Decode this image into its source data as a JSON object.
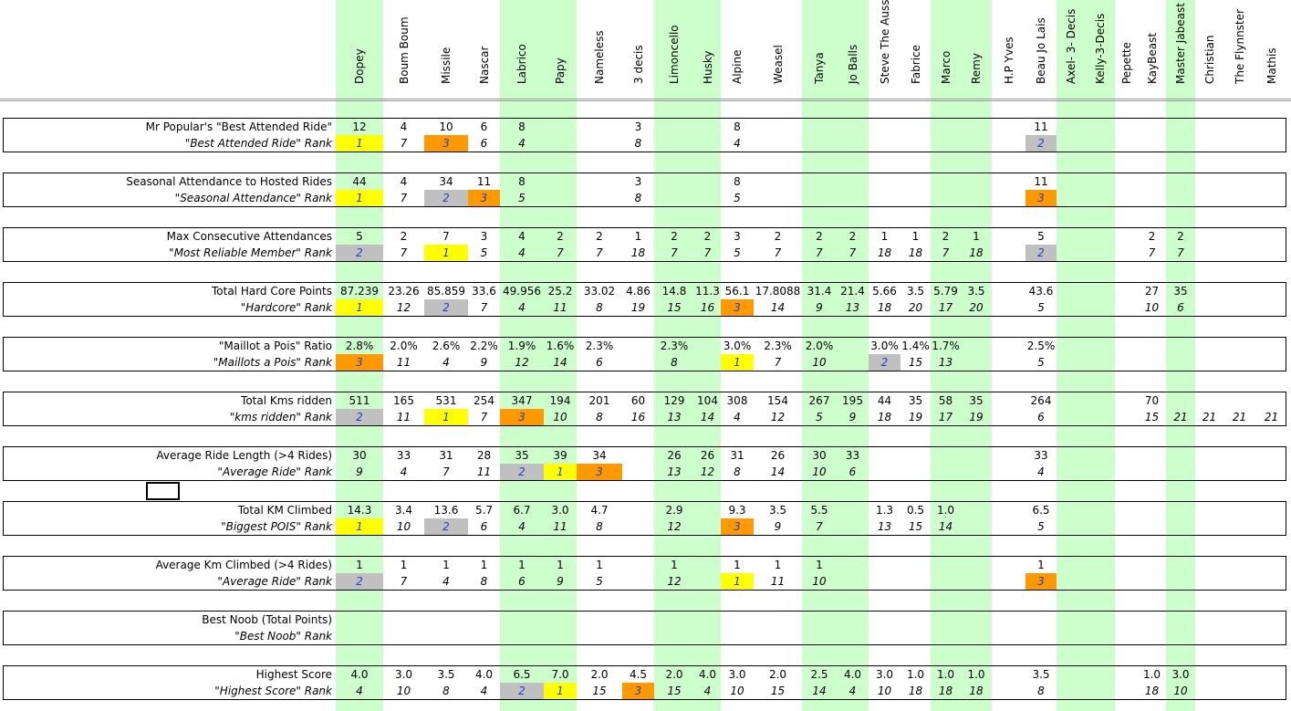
{
  "columns": [
    "Dopey",
    "Boum Boum",
    "Missile",
    "Nascar",
    "Labrico",
    "Papy",
    "Nameless",
    "3 decis",
    "Limoncello",
    "Husky",
    "Alpine",
    "Weasel",
    "Tanya",
    "Jo Balls",
    "Steve The Aussie",
    "Fabrice",
    "Marco",
    "Remy",
    "H.P Yves",
    "Beau Jo Lais",
    "Axel- 3- Decis",
    "Kelly-3-Decis",
    "Pepette",
    "KayBeast",
    "Master Jabeast",
    "Christian",
    "The Flynnster",
    "Mathis"
  ],
  "highlight_colors": {
    "yellow": "#ffff00",
    "orange": "#ff9900",
    "gray": "#c0c0c0",
    "green": "#ccffcc"
  },
  "sections": [
    {
      "label": "Mr Popular's \"Best Attended Ride\"",
      "rank_label": "\"Best Attended Ride\" Rank",
      "values": [
        "12",
        "4",
        "10",
        "6",
        "8",
        "",
        "",
        "3",
        "",
        "",
        "8",
        "",
        "",
        "",
        "",
        "",
        "",
        "",
        "",
        "11",
        "",
        "",
        "",
        "",
        "",
        "",
        "",
        ""
      ],
      "ranks": [
        "1",
        "7",
        "3",
        "6",
        "4",
        "",
        "",
        "8",
        "",
        "",
        "4",
        "",
        "",
        "",
        "",
        "",
        "",
        "",
        "",
        "2",
        "",
        "",
        "",
        "",
        "",
        "",
        "",
        ""
      ]
    },
    {
      "label": "Seasonal Attendance to Hosted Rides",
      "rank_label": "\"Seasonal Attendance\" Rank",
      "values": [
        "44",
        "4",
        "34",
        "11",
        "8",
        "",
        "",
        "3",
        "",
        "",
        "8",
        "",
        "",
        "",
        "",
        "",
        "",
        "",
        "",
        "11",
        "",
        "",
        "",
        "",
        "",
        "",
        "",
        ""
      ],
      "ranks": [
        "1",
        "7",
        "2",
        "3",
        "5",
        "",
        "",
        "8",
        "",
        "",
        "5",
        "",
        "",
        "",
        "",
        "",
        "",
        "",
        "",
        "3",
        "",
        "",
        "",
        "",
        "",
        "",
        "",
        ""
      ]
    },
    {
      "label": "Max Consecutive Attendances",
      "rank_label": "\"Most Reliable Member\" Rank",
      "values": [
        "5",
        "2",
        "7",
        "3",
        "4",
        "2",
        "2",
        "1",
        "2",
        "2",
        "3",
        "2",
        "2",
        "2",
        "1",
        "1",
        "2",
        "1",
        "",
        "5",
        "",
        "",
        "",
        "2",
        "2",
        "",
        "",
        ""
      ],
      "ranks": [
        "2",
        "7",
        "1",
        "5",
        "4",
        "7",
        "7",
        "18",
        "7",
        "7",
        "5",
        "7",
        "7",
        "7",
        "18",
        "18",
        "7",
        "18",
        "",
        "2",
        "",
        "",
        "",
        "7",
        "7",
        "",
        "",
        ""
      ]
    },
    {
      "label": "Total Hard Core Points",
      "rank_label": "\"Hardcore\" Rank",
      "values": [
        "87.239",
        "23.26",
        "85.859",
        "33.6",
        "49.956",
        "25.2",
        "33.02",
        "4.86",
        "14.8",
        "11.3",
        "56.1",
        "17.8088",
        "31.4",
        "21.4",
        "5.66",
        "3.5",
        "5.79",
        "3.5",
        "",
        "43.6",
        "",
        "",
        "",
        "27",
        "35",
        "",
        "",
        ""
      ],
      "ranks": [
        "1",
        "12",
        "2",
        "7",
        "4",
        "11",
        "8",
        "19",
        "15",
        "16",
        "3",
        "14",
        "9",
        "13",
        "18",
        "20",
        "17",
        "20",
        "",
        "5",
        "",
        "",
        "",
        "10",
        "6",
        "",
        "",
        ""
      ]
    },
    {
      "label": "\"Maillot a Pois\" Ratio",
      "rank_label": "\"Maillots a Pois\" Rank",
      "values": [
        "2.8%",
        "2.0%",
        "2.6%",
        "2.2%",
        "1.9%",
        "1.6%",
        "2.3%",
        "",
        "2.3%",
        "",
        "3.0%",
        "2.3%",
        "2.0%",
        "",
        "3.0%",
        "1.4%",
        "1.7%",
        "",
        "",
        "2.5%",
        "",
        "",
        "",
        "",
        "",
        "",
        "",
        ""
      ],
      "ranks": [
        "3",
        "11",
        "4",
        "9",
        "12",
        "14",
        "6",
        "",
        "8",
        "",
        "1",
        "7",
        "10",
        "",
        "2",
        "15",
        "13",
        "",
        "",
        "5",
        "",
        "",
        "",
        "",
        "",
        "",
        "",
        ""
      ]
    },
    {
      "label": "Total Kms ridden",
      "rank_label": "\"kms ridden\" Rank",
      "values": [
        "511",
        "165",
        "531",
        "254",
        "347",
        "194",
        "201",
        "60",
        "129",
        "104",
        "308",
        "154",
        "267",
        "195",
        "44",
        "35",
        "58",
        "35",
        "",
        "264",
        "",
        "",
        "",
        "70",
        "",
        "",
        "",
        ""
      ],
      "ranks": [
        "2",
        "11",
        "1",
        "7",
        "3",
        "10",
        "8",
        "16",
        "13",
        "14",
        "4",
        "12",
        "5",
        "9",
        "18",
        "19",
        "17",
        "19",
        "",
        "6",
        "",
        "",
        "",
        "15",
        "21",
        "21",
        "21",
        "21"
      ]
    },
    {
      "label": "Average Ride Length (>4 Rides)",
      "rank_label": "\"Average Ride\" Rank",
      "values": [
        "30",
        "33",
        "31",
        "28",
        "35",
        "39",
        "34",
        "",
        "26",
        "26",
        "31",
        "26",
        "30",
        "33",
        "",
        "",
        "",
        "",
        "",
        "33",
        "",
        "",
        "",
        "",
        "",
        "",
        "",
        ""
      ],
      "ranks": [
        "9",
        "4",
        "7",
        "11",
        "2",
        "1",
        "3",
        "",
        "13",
        "12",
        "8",
        "14",
        "10",
        "6",
        "",
        "",
        "",
        "",
        "",
        "4",
        "",
        "",
        "",
        "",
        "",
        "",
        "",
        ""
      ]
    },
    {
      "label": "Total KM Climbed",
      "rank_label": "\"Biggest POIS\" Rank",
      "values": [
        "14.3",
        "3.4",
        "13.6",
        "5.7",
        "6.7",
        "3.0",
        "4.7",
        "",
        "2.9",
        "",
        "9.3",
        "3.5",
        "5.5",
        "",
        "1.3",
        "0.5",
        "1.0",
        "",
        "",
        "6.5",
        "",
        "",
        "",
        "",
        "",
        "",
        "",
        ""
      ],
      "ranks": [
        "1",
        "10",
        "2",
        "6",
        "4",
        "11",
        "8",
        "",
        "12",
        "",
        "3",
        "9",
        "7",
        "",
        "13",
        "15",
        "14",
        "",
        "",
        "5",
        "",
        "",
        "",
        "",
        "",
        "",
        "",
        ""
      ]
    },
    {
      "label": "Average Km Climbed (>4 Rides)",
      "rank_label": "\"Average Ride\" Rank",
      "values": [
        "1",
        "1",
        "1",
        "1",
        "1",
        "1",
        "1",
        "",
        "1",
        "",
        "1",
        "1",
        "1",
        "",
        "",
        "",
        "",
        "",
        "",
        "1",
        "",
        "",
        "",
        "",
        "",
        "",
        "",
        ""
      ],
      "ranks": [
        "2",
        "7",
        "4",
        "8",
        "6",
        "9",
        "5",
        "",
        "12",
        "",
        "1",
        "11",
        "10",
        "",
        "",
        "",
        "",
        "",
        "",
        "3",
        "",
        "",
        "",
        "",
        "",
        "",
        "",
        ""
      ]
    },
    {
      "label": "Best Noob (Total Points)",
      "rank_label": "\"Best Noob\" Rank",
      "values": [
        "",
        "",
        "",
        "",
        "",
        "",
        "",
        "",
        "",
        "",
        "",
        "",
        "",
        "",
        "",
        "",
        "",
        "",
        "",
        "",
        "",
        "",
        "",
        "",
        "",
        "",
        "",
        ""
      ],
      "ranks": [
        "",
        "",
        "",
        "",
        "",
        "",
        "",
        "",
        "",
        "",
        "",
        "",
        "",
        "",
        "",
        "",
        "",
        "",
        "",
        "",
        "",
        "",
        "",
        "",
        "",
        "",
        "",
        ""
      ]
    },
    {
      "label": "Highest Score",
      "rank_label": "\"Highest Score\" Rank",
      "values": [
        "4.0",
        "3.0",
        "3.5",
        "4.0",
        "6.5",
        "7.0",
        "2.0",
        "4.5",
        "2.0",
        "4.0",
        "3.0",
        "2.0",
        "2.5",
        "4.0",
        "3.0",
        "1.0",
        "1.0",
        "1.0",
        "",
        "3.5",
        "",
        "",
        "",
        "1.0",
        "3.0",
        "",
        "",
        ""
      ],
      "ranks": [
        "4",
        "10",
        "8",
        "4",
        "2",
        "1",
        "15",
        "3",
        "15",
        "4",
        "10",
        "15",
        "14",
        "4",
        "10",
        "18",
        "18",
        "18",
        "",
        "8",
        "",
        "",
        "",
        "18",
        "10",
        "",
        "",
        ""
      ]
    }
  ]
}
